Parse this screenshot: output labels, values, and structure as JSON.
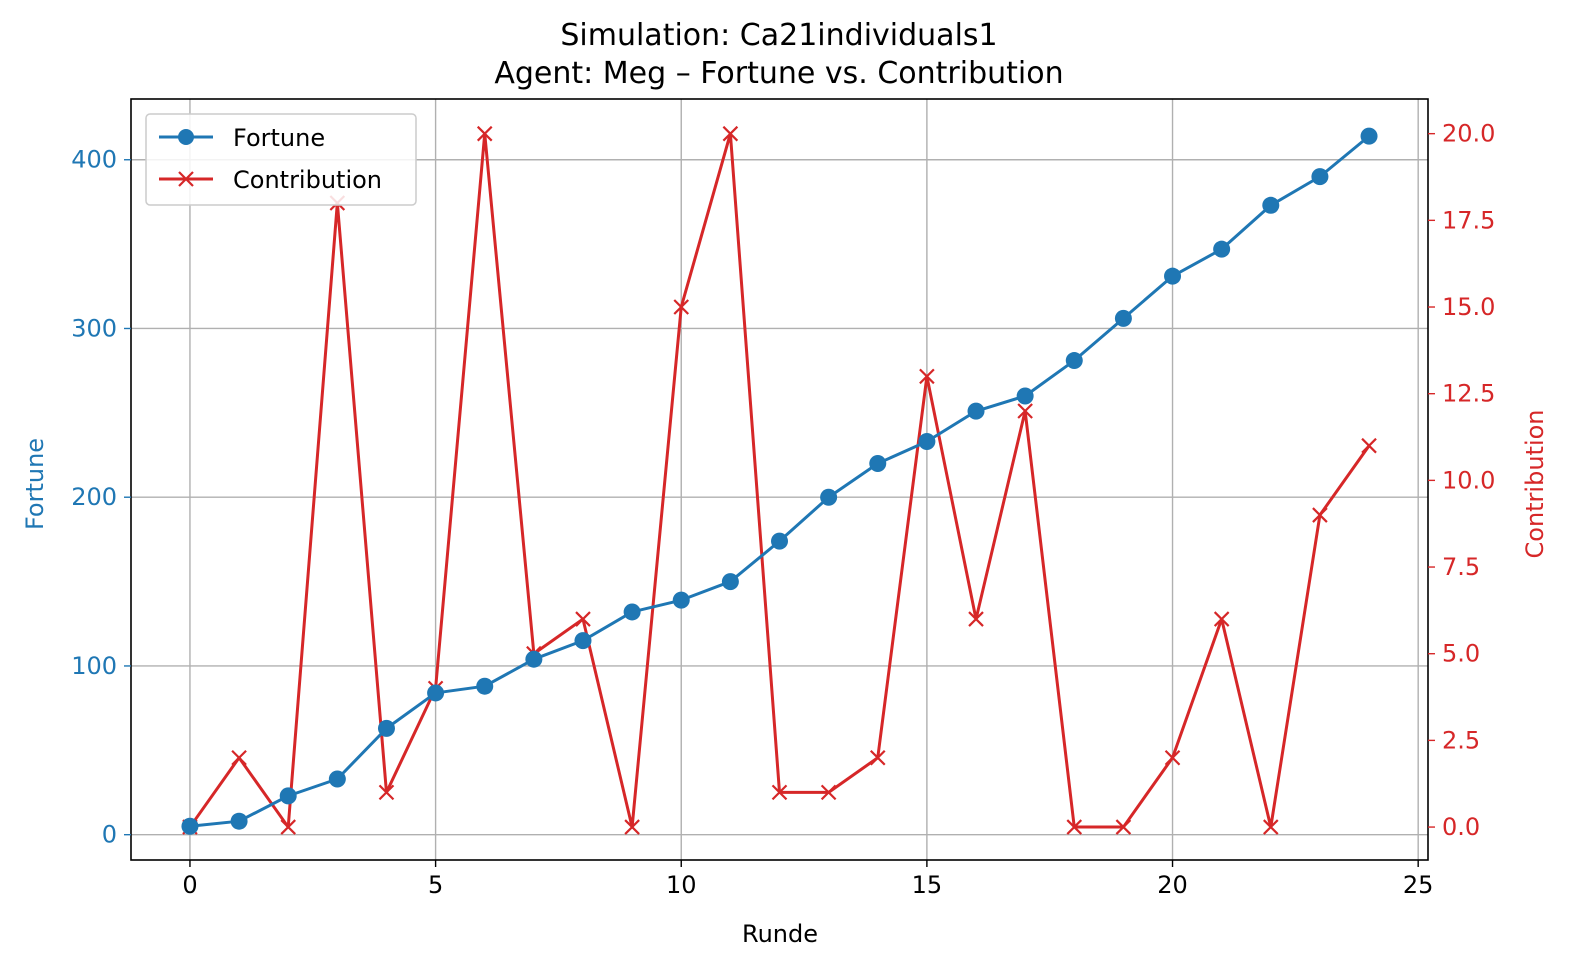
{
  "chart_data": {
    "type": "line",
    "title": "Simulation: Ca21individuals1",
    "subtitle": "Agent: Meg – Fortune vs. Contribution",
    "xlabel": "Runde",
    "ylabel_left": "Fortune",
    "ylabel_right": "Contribution",
    "xlim": [
      -1.2,
      25.2
    ],
    "ylim_left": [
      -15,
      436
    ],
    "ylim_right": [
      -0.95,
      21
    ],
    "x_ticks": [
      "0",
      "5",
      "10",
      "15",
      "20",
      "25"
    ],
    "y_left_ticks": [
      "0",
      "100",
      "200",
      "300",
      "400"
    ],
    "y_right_ticks": [
      "0.0",
      "2.5",
      "5.0",
      "7.5",
      "10.0",
      "12.5",
      "15.0",
      "17.5",
      "20.0"
    ],
    "grid": true,
    "legend_position": "top-left",
    "x": [
      0,
      1,
      2,
      3,
      4,
      5,
      6,
      7,
      8,
      9,
      10,
      11,
      12,
      13,
      14,
      15,
      16,
      17,
      18,
      19,
      20,
      21,
      22,
      23,
      24
    ],
    "series": [
      {
        "name": "Fortune",
        "axis": "left",
        "marker": "circle",
        "color": "#1f77b4",
        "values": [
          5,
          8,
          23,
          33,
          63,
          84,
          88,
          104,
          115,
          132,
          139,
          150,
          174,
          200,
          220,
          233,
          251,
          260,
          281,
          306,
          331,
          347,
          373,
          390,
          414
        ]
      },
      {
        "name": "Contribution",
        "axis": "right",
        "marker": "x",
        "color": "#d62728",
        "values": [
          0,
          2,
          0,
          18,
          1,
          4,
          20,
          5,
          6,
          0,
          15,
          20,
          1,
          1,
          2,
          13,
          6,
          12,
          0,
          0,
          2,
          6,
          0,
          9,
          11
        ]
      }
    ]
  }
}
